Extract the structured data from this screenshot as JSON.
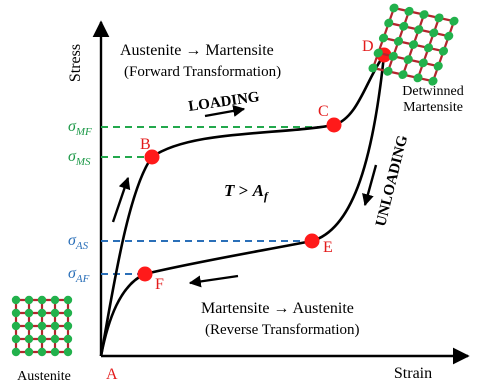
{
  "axes": {
    "y_label": "Stress",
    "x_label": "Strain"
  },
  "forward": {
    "line1": "Austenite → Martensite",
    "line2": "(Forward Transformation)"
  },
  "reverse": {
    "line1": "Martensite → Austenite",
    "line2": "(Reverse Transformation)"
  },
  "condition": {
    "T": "T",
    "op": " > ",
    "A": "A",
    "sub": "f"
  },
  "loading_label": "LOADING",
  "unloading_label": "UNLOADING",
  "points": {
    "A": "A",
    "B": "B",
    "C": "C",
    "D": "D",
    "E": "E",
    "F": "F"
  },
  "stress_levels": {
    "mf": {
      "sym": "σ",
      "sub": "MF"
    },
    "ms": {
      "sym": "σ",
      "sub": "MS"
    },
    "as": {
      "sym": "σ",
      "sub": "AS"
    },
    "af": {
      "sym": "σ",
      "sub": "AF"
    }
  },
  "lattice_labels": {
    "austenite": "Austenite",
    "detwinned_line1": "Detwinned",
    "detwinned_line2": "Martensite"
  },
  "colors": {
    "curve": "#000000",
    "point": "#ff1a1a",
    "point_label": "#e31b1b",
    "green": "#1f9a4a",
    "blue": "#2a6fb8",
    "node_green": "#22b14c",
    "bond_red": "#b3262d"
  }
}
